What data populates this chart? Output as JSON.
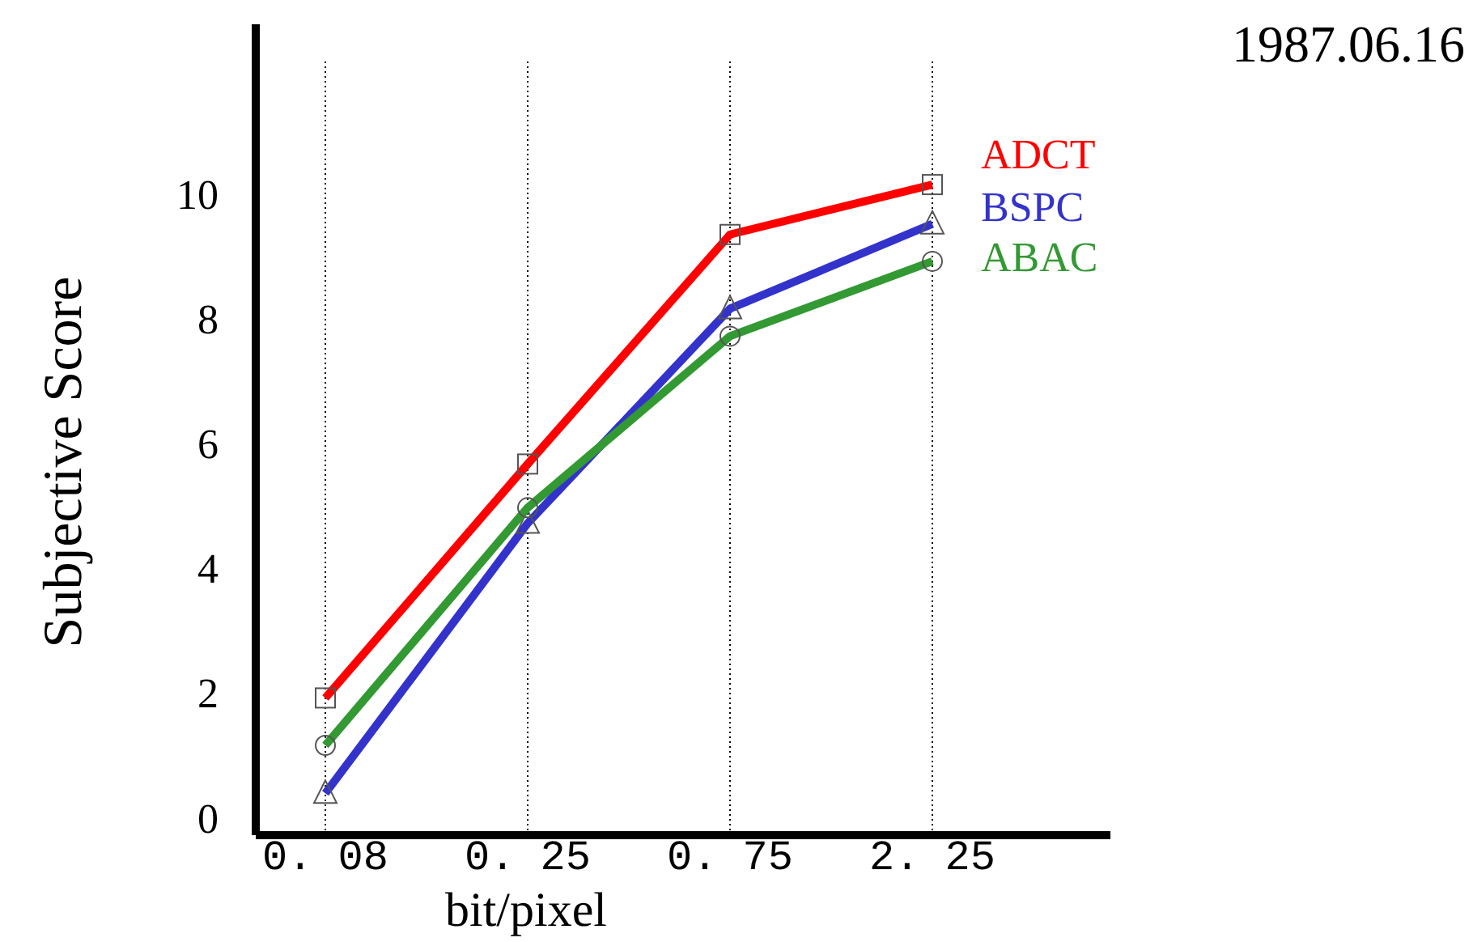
{
  "chart_data": {
    "type": "line",
    "xlabel": "bit/pixel",
    "ylabel": "Subjective Score",
    "categories": [
      "0. 08",
      "0. 25",
      "0. 75",
      "2. 25"
    ],
    "series": [
      {
        "name": "ADCT",
        "color": "#ff0000",
        "marker": "square",
        "values": [
          2.0,
          5.75,
          9.43,
          10.23
        ]
      },
      {
        "name": "BSPC",
        "color": "#3333cc",
        "marker": "triangle",
        "values": [
          0.47,
          4.8,
          8.24,
          9.6
        ]
      },
      {
        "name": "ABAC",
        "color": "#339933",
        "marker": "circle",
        "values": [
          1.24,
          5.05,
          7.8,
          9.0
        ]
      }
    ],
    "ylim": [
      -0.2,
      12.8
    ],
    "yticks": [
      0,
      2,
      4,
      6,
      8,
      10
    ],
    "grid": "x",
    "line_style": "solid",
    "annotations": [
      "1987.06.16"
    ]
  }
}
